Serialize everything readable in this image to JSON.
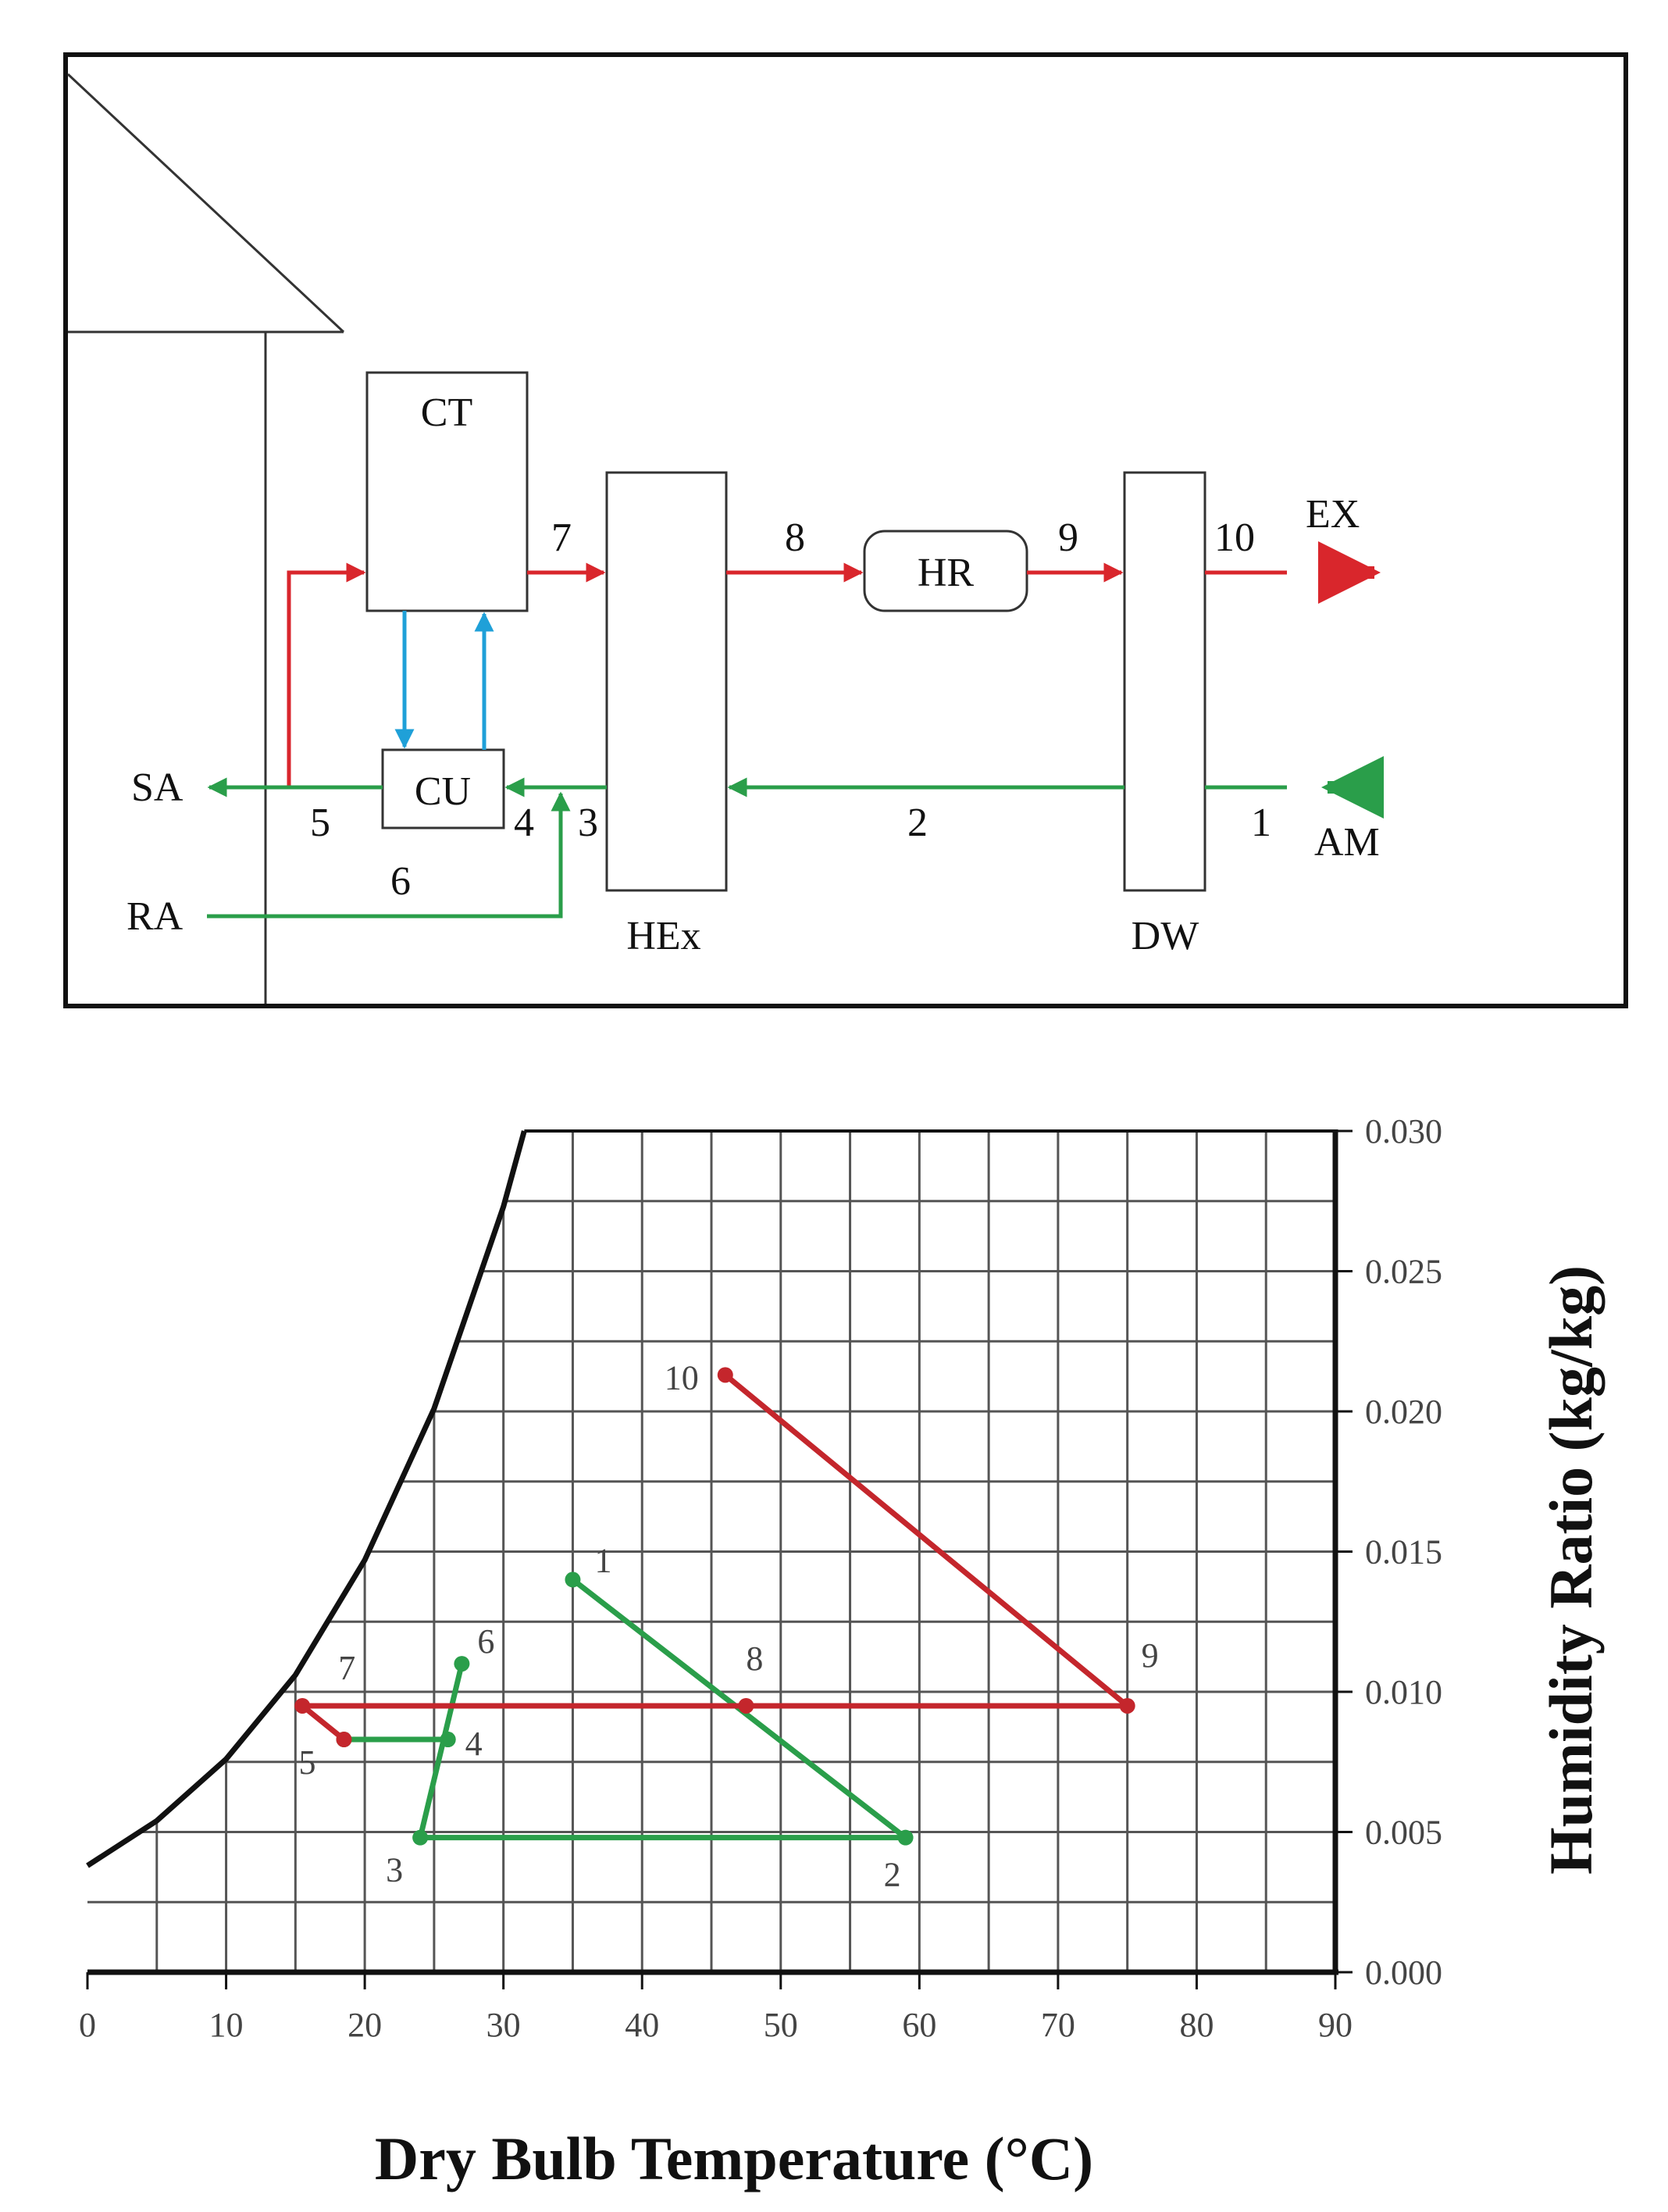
{
  "schematic": {
    "components": {
      "ct": "CT",
      "cu": "CU",
      "hex": "HEx",
      "hr": "HR",
      "dw": "DW"
    },
    "streams": {
      "sa": "SA",
      "ra": "RA",
      "ex": "EX",
      "am": "AM"
    },
    "state_labels": {
      "s1": "1",
      "s2": "2",
      "s3": "3",
      "s4": "4",
      "s5": "5",
      "s6": "6",
      "s7": "7",
      "s8": "8",
      "s9": "9",
      "s10": "10"
    },
    "colors": {
      "hot_air": "#d9262c",
      "cool_air": "#2a9e4a",
      "water": "#1fa0d8",
      "outline": "#111111"
    }
  },
  "chart_data": {
    "type": "line",
    "xlabel": "Dry Bulb Temperature (°C)",
    "ylabel": "Humidity Ratio (kg/kg)",
    "xlim": [
      0,
      90
    ],
    "ylim": [
      0,
      0.03
    ],
    "x_ticks": [
      "0",
      "10",
      "20",
      "30",
      "40",
      "50",
      "60",
      "70",
      "80",
      "90"
    ],
    "y_ticks": [
      "0.000",
      "0.005",
      "0.010",
      "0.015",
      "0.020",
      "0.025",
      "0.030"
    ],
    "grid": true,
    "y_axis_side": "right",
    "saturation_curve": [
      [
        0,
        0.0038
      ],
      [
        5,
        0.0054
      ],
      [
        10,
        0.0076
      ],
      [
        15,
        0.0106
      ],
      [
        20,
        0.0147
      ],
      [
        25,
        0.0201
      ],
      [
        30,
        0.0273
      ],
      [
        31.5,
        0.03
      ]
    ],
    "series": [
      {
        "color": "#2a9e4a",
        "points": [
          {
            "label": "1",
            "x": 35,
            "y": 0.014
          },
          {
            "label": "2",
            "x": 59,
            "y": 0.0048
          },
          {
            "label": "3",
            "x": 24,
            "y": 0.0048
          },
          {
            "label": "4",
            "x": 26,
            "y": 0.0083
          },
          {
            "label": "6",
            "x": 27,
            "y": 0.011
          }
        ],
        "segments": [
          [
            "1",
            "2"
          ],
          [
            "2",
            "3"
          ],
          [
            "3",
            "6"
          ]
        ]
      },
      {
        "color": "#2a9e4a",
        "points": [
          {
            "label": "4",
            "x": 26,
            "y": 0.0083
          },
          {
            "label": "5",
            "x": 18.5,
            "y": 0.0083
          }
        ],
        "segments": [
          [
            "4",
            "5"
          ]
        ]
      },
      {
        "color": "#c4262c",
        "points": [
          {
            "label": "5",
            "x": 18.5,
            "y": 0.0083
          },
          {
            "label": "7",
            "x": 15.5,
            "y": 0.0095
          },
          {
            "label": "8",
            "x": 47.5,
            "y": 0.0095
          },
          {
            "label": "9",
            "x": 75,
            "y": 0.0095
          },
          {
            "label": "10",
            "x": 46,
            "y": 0.0213
          }
        ],
        "segments": [
          [
            "5",
            "7"
          ],
          [
            "7",
            "9"
          ],
          [
            "9",
            "10"
          ]
        ]
      }
    ]
  }
}
